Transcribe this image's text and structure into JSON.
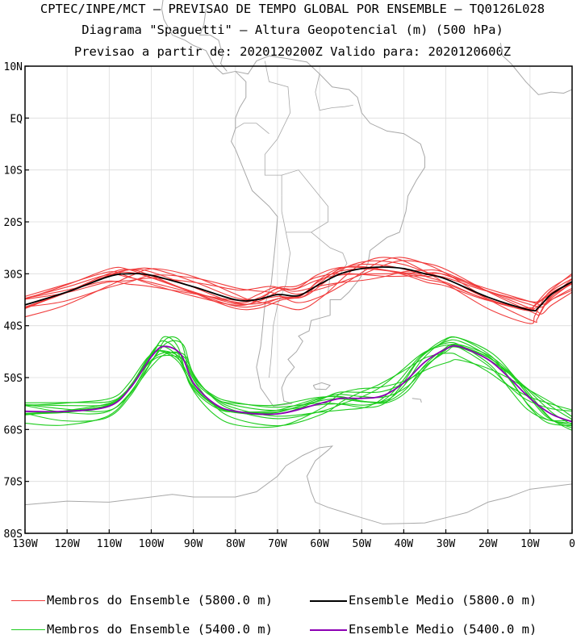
{
  "title": {
    "line1": "CPTEC/INPE/MCT — PREVISAO DE TEMPO GLOBAL POR ENSEMBLE — TQ0126L028",
    "line2": "Diagrama \"Spaguetti\" — Altura Geopotencial (m) (500 hPa)",
    "line3": "Previsao a partir de: 2020120200Z  Valido para: 2020120600Z"
  },
  "axes": {
    "y_ticks": [
      "10N",
      "EQ",
      "10S",
      "20S",
      "30S",
      "40S",
      "50S",
      "60S",
      "70S",
      "80S"
    ],
    "x_ticks": [
      "130W",
      "120W",
      "110W",
      "100W",
      "90W",
      "80W",
      "70W",
      "60W",
      "50W",
      "40W",
      "30W",
      "20W",
      "10W",
      "0"
    ],
    "lon_range": [
      -130,
      0
    ],
    "lat_range": [
      -80,
      10
    ],
    "grid": true
  },
  "colors": {
    "member_5800": "#f03c3c",
    "mean_5800": "#000000",
    "member_5400": "#1ecc1e",
    "mean_5400": "#8c00b4",
    "coast": "#a8a8a8"
  },
  "legend": {
    "member_5800": "Membros do Ensemble (5800.0 m)",
    "mean_5800": "Ensemble Medio (5800.0 m)",
    "member_5400": "Membros do Ensemble (5400.0 m)",
    "mean_5400": "Ensemble Medio (5400.0 m)"
  },
  "chart_data": {
    "type": "line",
    "x_unit": "longitude (deg)",
    "y_unit": "latitude (deg)",
    "series": [
      {
        "name": "Ensemble Medio (5800.0 m)",
        "lon": [
          -130,
          -120,
          -110,
          -105,
          -100,
          -90,
          -80,
          -75,
          -70,
          -65,
          -60,
          -55,
          -50,
          -45,
          -40,
          -35,
          -30,
          -20,
          -10,
          -8,
          -5,
          0
        ],
        "lat": [
          -36,
          -33.5,
          -30.5,
          -30,
          -30.3,
          -32.5,
          -35,
          -35,
          -34,
          -34.2,
          -32,
          -30,
          -29,
          -28.7,
          -29,
          -30,
          -31,
          -34.5,
          -37,
          -36.5,
          -34,
          -31.5
        ]
      },
      {
        "name": "Ensemble Medio (5400.0 m)",
        "lon": [
          -130,
          -120,
          -110,
          -105,
          -100,
          -97,
          -93,
          -90,
          -85,
          -80,
          -70,
          -60,
          -55,
          -50,
          -45,
          -40,
          -35,
          -30,
          -27,
          -20,
          -15,
          -10,
          -5,
          0
        ],
        "lat": [
          -56.5,
          -56.5,
          -55.5,
          -52,
          -46,
          -44,
          -45.5,
          -51,
          -55,
          -56.5,
          -57,
          -55,
          -54,
          -54,
          -53.5,
          -51,
          -47,
          -44.5,
          -44,
          -46.5,
          -50,
          -54,
          -57,
          -58.5
        ]
      }
    ]
  }
}
